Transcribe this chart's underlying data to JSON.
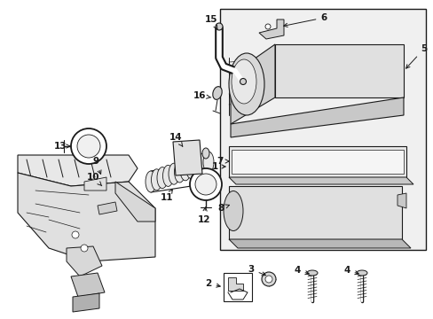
{
  "bg_color": "#ffffff",
  "line_color": "#1a1a1a",
  "gray_fill": "#d8d8d8",
  "light_fill": "#efefef",
  "box_fill": "#e8e8e8",
  "figsize": [
    4.89,
    3.6
  ],
  "dpi": 100,
  "xlim": [
    0,
    489
  ],
  "ylim": [
    0,
    360
  ]
}
